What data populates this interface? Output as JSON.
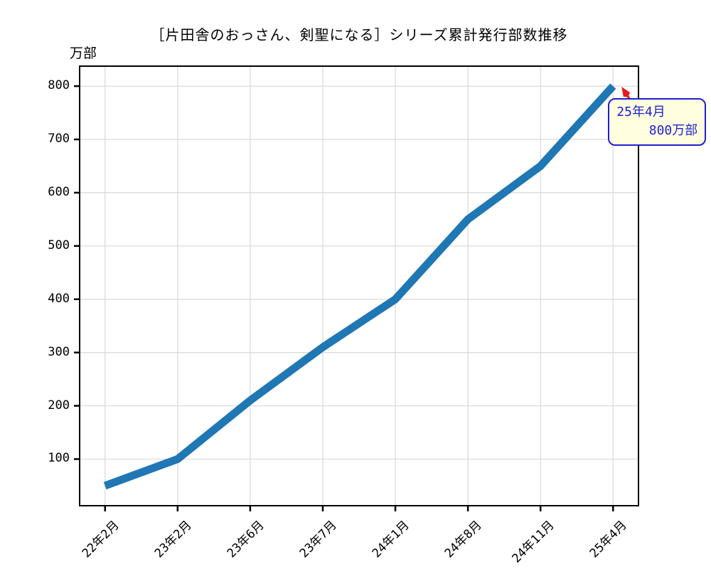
{
  "title": "［片田舎のおっさん、剣聖になる］シリーズ累計発行部数推移",
  "y_unit_label": "万部",
  "annotation": {
    "line1": "25年4月",
    "line2": "800万部"
  },
  "colors": {
    "line": "#1f77b4",
    "grid": "#d9d9d9",
    "spine": "#000000",
    "tick": "#000000",
    "annotation_bg": "#ffffe0",
    "annotation_border": "#1f1fd0",
    "annotation_text": "#1f1fd0",
    "arrow": "#e8191e",
    "background": "#ffffff"
  },
  "chart_data": {
    "type": "line",
    "title": "［片田舎のおっさん、剣聖になる］シリーズ累計発行部数推移",
    "xlabel": "",
    "ylabel": "万部",
    "categories": [
      "22年2月",
      "23年2月",
      "23年6月",
      "23年7月",
      "24年1月",
      "24年8月",
      "24年11月",
      "25年4月"
    ],
    "values": [
      50,
      100,
      210,
      310,
      400,
      550,
      650,
      800
    ],
    "yticks": [
      100,
      200,
      300,
      400,
      500,
      600,
      700,
      800
    ],
    "ylim": [
      12.5,
      837.5
    ],
    "xlim": [
      -0.35,
      7.35
    ],
    "grid": true,
    "legend": "none",
    "line_width": 11,
    "annotation": {
      "target_category": "25年4月",
      "target_value": 800,
      "text": "25年4月\n800万部"
    }
  }
}
